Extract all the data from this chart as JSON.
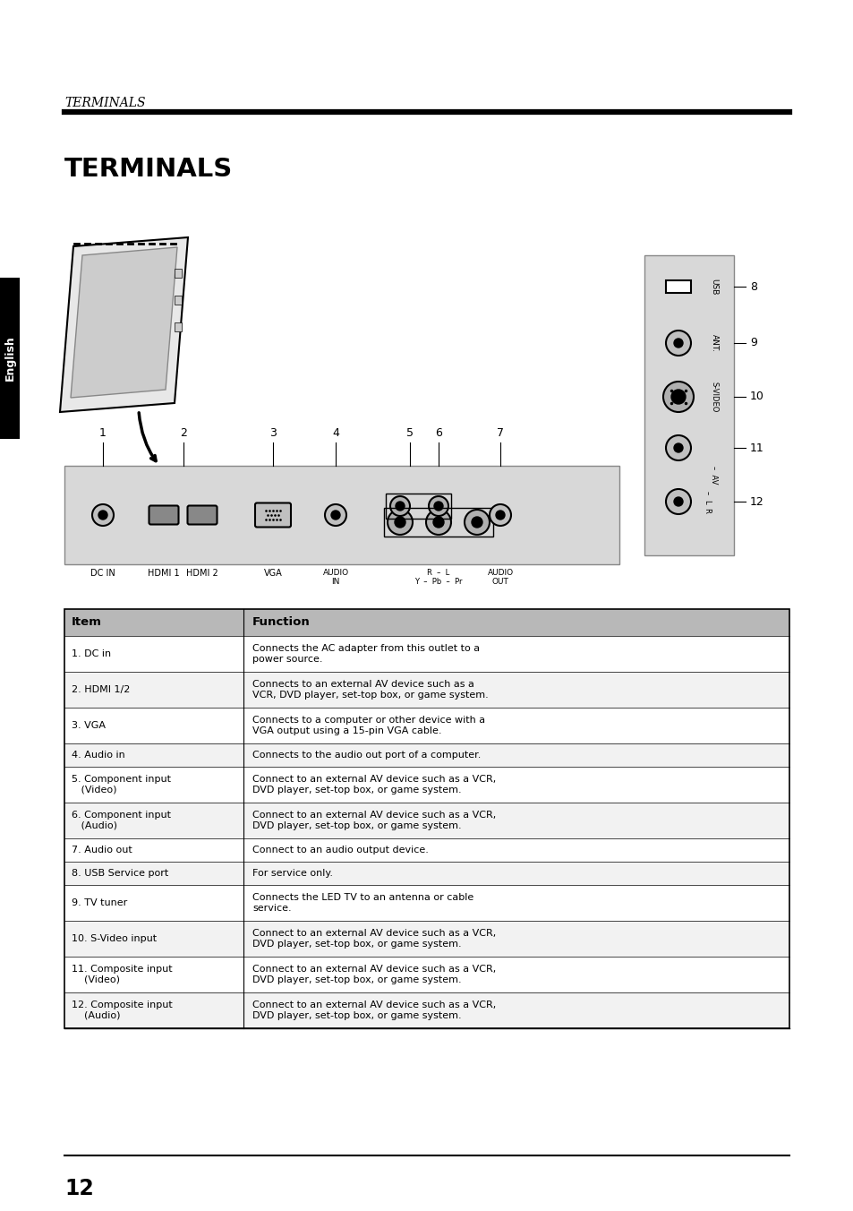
{
  "page_title_italic": "TERMINALS",
  "section_title": "TERMINALS",
  "english_tab": "English",
  "page_number": "12",
  "table_header": [
    "Item",
    "Function"
  ],
  "table_rows": [
    [
      "1. DC in",
      "Connects the AC adapter from this outlet to a\npower source."
    ],
    [
      "2. HDMI 1/2",
      "Connects to an external AV device such as a\nVCR, DVD player, set-top box, or game system."
    ],
    [
      "3. VGA",
      "Connects to a computer or other device with a\nVGA output using a 15-pin VGA cable."
    ],
    [
      "4. Audio in",
      "Connects to the audio out port of a computer."
    ],
    [
      "5. Component input\n   (Video)",
      "Connect to an external AV device such as a VCR,\nDVD player, set-top box, or game system."
    ],
    [
      "6. Component input\n   (Audio)",
      "Connect to an external AV device such as a VCR,\nDVD player, set-top box, or game system."
    ],
    [
      "7. Audio out",
      "Connect to an audio output device."
    ],
    [
      "8. USB Service port",
      "For service only."
    ],
    [
      "9. TV tuner",
      "Connects the LED TV to an antenna or cable\nservice."
    ],
    [
      "10. S-Video input",
      "Connect to an external AV device such as a VCR,\nDVD player, set-top box, or game system."
    ],
    [
      "11. Composite input\n    (Video)",
      "Connect to an external AV device such as a VCR,\nDVD player, set-top box, or game system."
    ],
    [
      "12. Composite input\n    (Audio)",
      "Connect to an external AV device such as a VCR,\nDVD player, set-top box, or game system."
    ]
  ],
  "bg_color": "#ffffff",
  "table_header_bg": "#b8b8b8",
  "gray_panel": "#d8d8d8"
}
